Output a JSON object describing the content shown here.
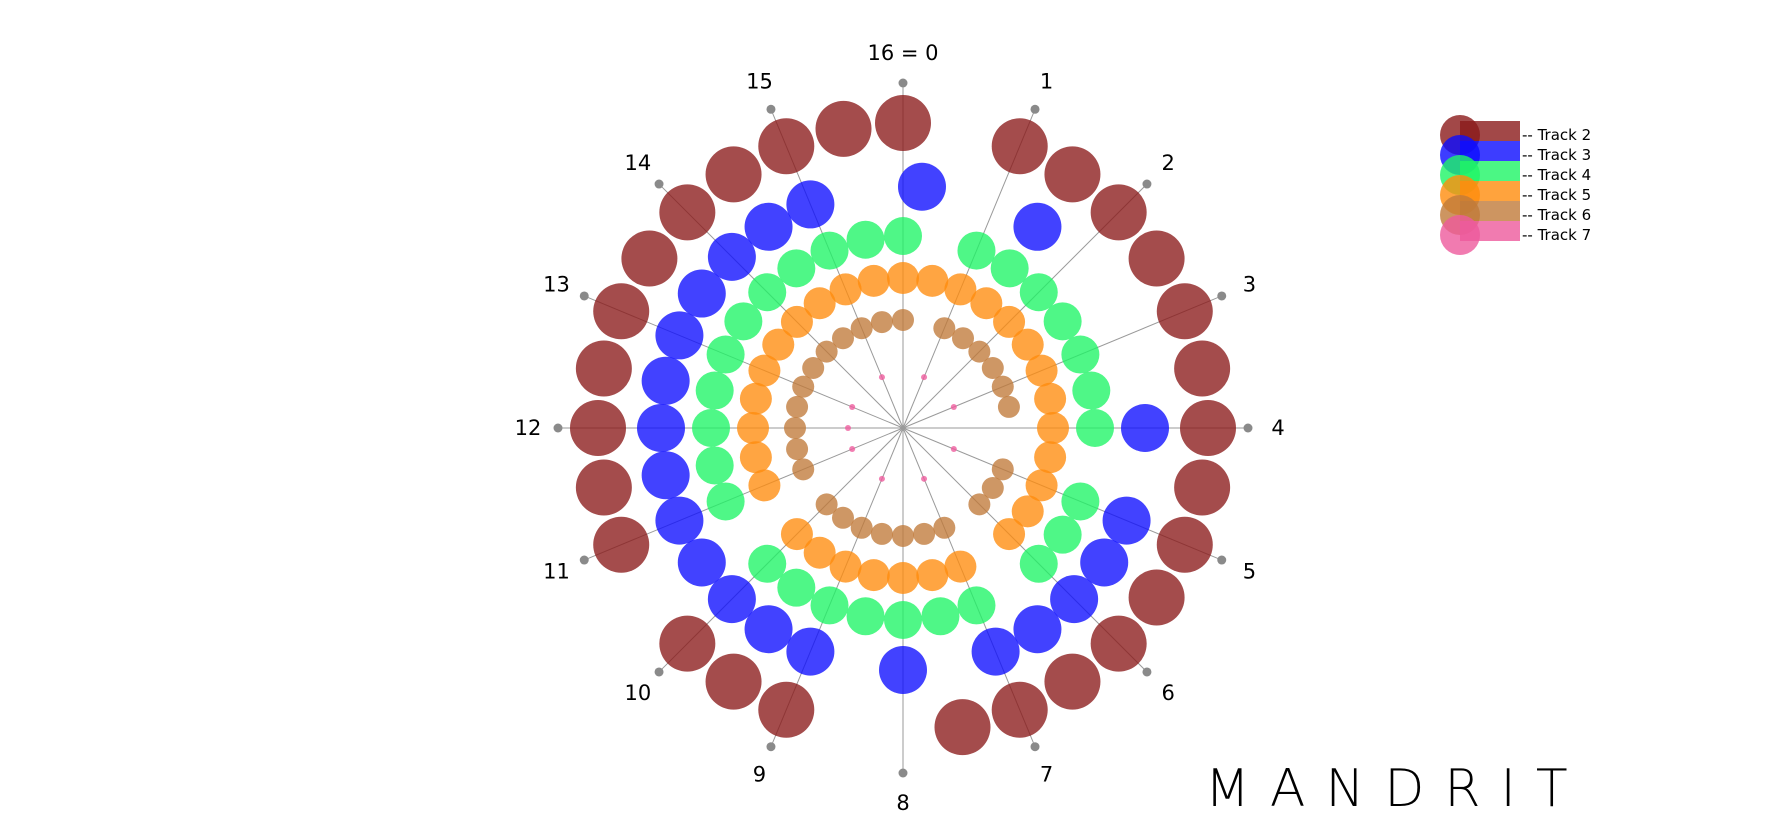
{
  "steps": 16,
  "step_labels": [
    "16 = 0",
    "1",
    "2",
    "3",
    "4",
    "5",
    "6",
    "7",
    "8",
    "9",
    "10",
    "11",
    "12",
    "13",
    "14",
    "15"
  ],
  "tracks": [
    {
      "name": "Track 2",
      "color": "#8b1a1a",
      "onsets": [
        0,
        1,
        1.5,
        2,
        2.5,
        3,
        3.5,
        4,
        4.5,
        5,
        5.5,
        6,
        6.5,
        7,
        7.5,
        9,
        9.5,
        10,
        11,
        11.5,
        12,
        12.5,
        13,
        13.5,
        14,
        14.5,
        15,
        15.5
      ]
    },
    {
      "name": "Track 3",
      "color": "#0d0dff",
      "onsets": [
        0.2,
        1.5,
        4,
        5,
        5.5,
        6,
        6.5,
        7,
        8,
        9,
        9.5,
        10,
        10.5,
        11,
        11.5,
        12,
        12.5,
        13,
        13.5,
        14,
        14.5,
        15
      ]
    },
    {
      "name": "Track 4",
      "color": "#1ef565",
      "onsets": [
        0,
        1,
        1.5,
        2,
        2.5,
        3,
        3.5,
        4,
        5,
        5.5,
        6,
        7,
        7.5,
        8,
        8.5,
        9,
        9.5,
        10,
        11,
        11.5,
        12,
        12.5,
        13,
        13.5,
        14,
        14.5,
        15,
        15.5
      ]
    },
    {
      "name": "Track 5",
      "color": "#ff8c0d",
      "onsets": [
        0,
        0.5,
        1,
        1.5,
        2,
        2.5,
        3,
        3.5,
        4,
        4.5,
        5,
        5.5,
        6,
        7,
        7.5,
        8,
        8.5,
        9,
        9.5,
        10,
        11,
        11.5,
        12,
        12.5,
        13,
        13.5,
        14,
        14.5,
        15,
        15.5
      ]
    },
    {
      "name": "Track 6",
      "color": "#c07a3a",
      "onsets": [
        0,
        1,
        1.5,
        2,
        2.5,
        3,
        3.5,
        5,
        5.5,
        6,
        7,
        7.5,
        8,
        8.5,
        9,
        9.5,
        10,
        11,
        11.5,
        12,
        12.5,
        13,
        13.5,
        14,
        14.5,
        15,
        15.5
      ]
    },
    {
      "name": "Track 7",
      "color": "#ee5a9c",
      "onsets": [
        1,
        3,
        5,
        7,
        9,
        11,
        12,
        13,
        15
      ]
    }
  ],
  "brand": "MANDRIT"
}
